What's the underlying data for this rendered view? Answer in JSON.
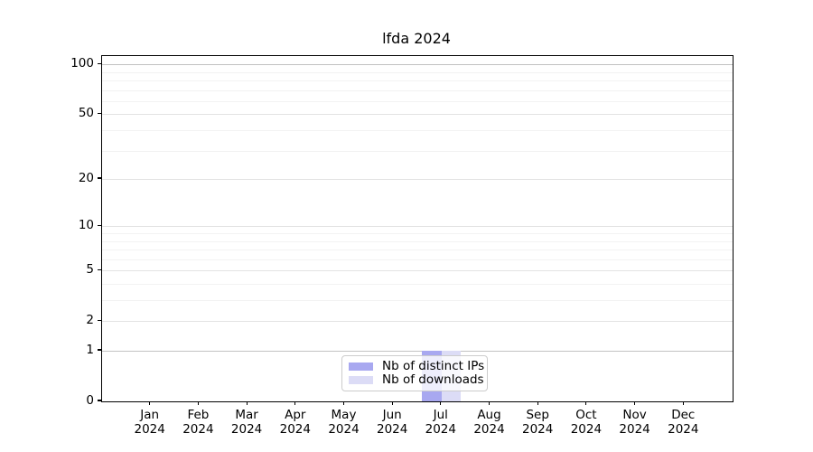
{
  "title": "lfda 2024",
  "chart_data": {
    "type": "bar",
    "title": "lfda 2024",
    "categories": [
      "Jan 2024",
      "Feb 2024",
      "Mar 2024",
      "Apr 2024",
      "May 2024",
      "Jun 2024",
      "Jul 2024",
      "Aug 2024",
      "Sep 2024",
      "Oct 2024",
      "Nov 2024",
      "Dec 2024"
    ],
    "series": [
      {
        "name": "Nb of distinct IPs",
        "color": "#a8a8f0",
        "values": [
          0,
          0,
          0,
          0,
          0,
          0,
          1,
          0,
          0,
          0,
          0,
          0
        ]
      },
      {
        "name": "Nb of downloads",
        "color": "#dcdcf6",
        "values": [
          0,
          0,
          0,
          0,
          0,
          0,
          1,
          0,
          0,
          0,
          0,
          0
        ]
      }
    ],
    "yscale": "log1p",
    "yticks": [
      0,
      1,
      2,
      5,
      10,
      20,
      50,
      100
    ],
    "minor_gridlines": [
      3,
      4,
      6,
      7,
      8,
      9,
      30,
      40,
      60,
      70,
      80,
      90
    ],
    "emphasized_gridlines": [
      1,
      100
    ],
    "ylim": [
      0,
      112
    ],
    "grid": "horizontal",
    "legend_position": "lower center",
    "legend_entries": [
      "Nb of distinct IPs",
      "Nb of downloads"
    ]
  },
  "colors": {
    "background": "#ffffff",
    "spine": "#000000",
    "grid_strong": "#c2c2c2",
    "grid_major": "#e3e3e3",
    "grid_minor": "#f2f2f2",
    "bar_distinct_ips": "#a8a8f0",
    "bar_downloads": "#dcdcf6",
    "legend_border": "#cccccc"
  }
}
